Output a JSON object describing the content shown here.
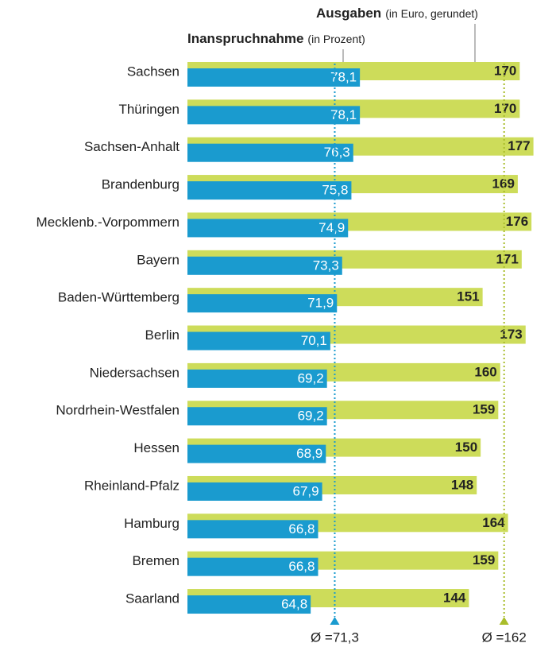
{
  "chart_data": {
    "type": "bar",
    "categories": [
      "Sachsen",
      "Thüringen",
      "Sachsen-Anhalt",
      "Brandenburg",
      "Mecklenb.-Vorpommern",
      "Bayern",
      "Baden-Württemberg",
      "Berlin",
      "Niedersachsen",
      "Nordrhein-Westfalen",
      "Hessen",
      "Rheinland-Pfalz",
      "Hamburg",
      "Bremen",
      "Saarland"
    ],
    "series": [
      {
        "name": "Inanspruchnahme",
        "unit": "(in Prozent)",
        "color": "#1a9bcf",
        "xlim": [
          31.5,
          130
        ],
        "values": [
          78.1,
          78.1,
          76.3,
          75.8,
          74.9,
          73.3,
          71.9,
          70.1,
          69.2,
          69.2,
          68.9,
          67.9,
          66.8,
          66.8,
          64.8
        ],
        "value_labels": [
          "78,1",
          "78,1",
          "76,3",
          "75,8",
          "74,9",
          "73,3",
          "71,9",
          "70,1",
          "69,2",
          "69,2",
          "68,9",
          "67,9",
          "66,8",
          "66,8",
          "64,8"
        ],
        "average": {
          "value": 71.3,
          "label": "Ø =71,3"
        }
      },
      {
        "name": "Ausgaben",
        "unit": "(in Euro, gerundet)",
        "color": "#cddc5a",
        "xlim": [
          0,
          186.5
        ],
        "values": [
          170,
          170,
          177,
          169,
          176,
          171,
          151,
          173,
          160,
          159,
          150,
          148,
          164,
          159,
          144
        ],
        "average": {
          "value": 162,
          "label": "Ø =162"
        }
      }
    ]
  }
}
